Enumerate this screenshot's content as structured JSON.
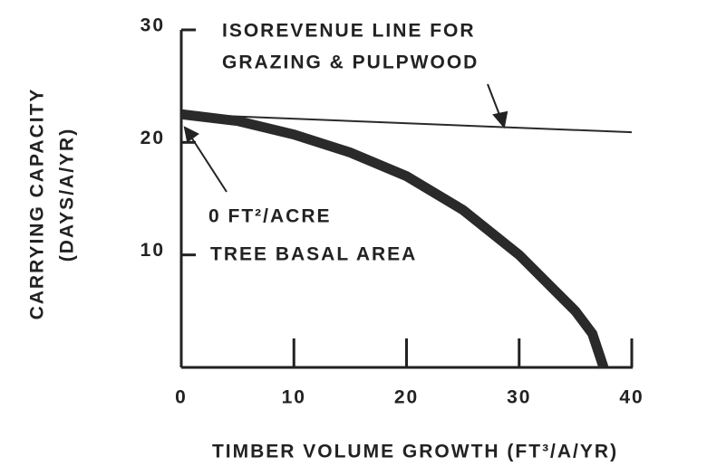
{
  "chart_data": {
    "type": "line",
    "x_label": "TIMBER VOLUME GROWTH (FT³/A/YR)",
    "y_label": [
      "CARRYING CAPACITY",
      "(DAYS/A/YR)"
    ],
    "annotations": [
      [
        "ISOREVENUE LINE FOR",
        "GRAZING & PULPWOOD"
      ],
      [
        "0 FT²/ACRE",
        "TREE BASAL AREA"
      ]
    ],
    "series": [
      {
        "color": "#2a2a2a",
        "line_width": 11,
        "x": [
          0,
          5,
          10,
          15,
          20,
          25,
          30,
          33,
          35,
          36.5,
          37.5
        ],
        "values": [
          22.5,
          21.9,
          20.7,
          19.1,
          17,
          14,
          10,
          7,
          5,
          3,
          0
        ]
      },
      {
        "color": "#2a2a2a",
        "line_width": 2,
        "x": [
          0,
          40
        ],
        "values": [
          22.5,
          20.9
        ]
      }
    ],
    "xlim": [
      0,
      40
    ],
    "xticks": [
      0,
      10,
      20,
      30,
      40
    ],
    "ylim": [
      0,
      30
    ],
    "yticks": [
      10,
      20,
      30
    ]
  }
}
